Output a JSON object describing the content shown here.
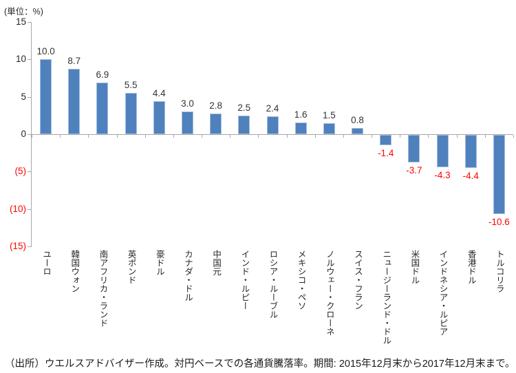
{
  "chart_data": {
    "type": "bar",
    "unit_label": "(単位：%)",
    "categories": [
      "ユーロ",
      "韓国ウォン",
      "南アフリカ・ランド",
      "英ポンド",
      "豪ドル",
      "カナダ・ドル",
      "中国元",
      "インド・ルピー",
      "ロシア・ルーブル",
      "メキシコ・ペソ",
      "ノルウェー・クローネ",
      "スイス・フラン",
      "ニュージーランド・ドル",
      "米国ドル",
      "インドネシア・ルピア",
      "香港ドル",
      "トルコリラ"
    ],
    "values": [
      10.0,
      8.7,
      6.9,
      5.5,
      4.4,
      3.0,
      2.8,
      2.5,
      2.4,
      1.6,
      1.5,
      0.8,
      -1.4,
      -3.7,
      -4.3,
      -4.4,
      -10.6
    ],
    "value_labels": [
      "10.0",
      "8.7",
      "6.9",
      "5.5",
      "4.4",
      "3.0",
      "2.8",
      "2.5",
      "2.4",
      "1.6",
      "1.5",
      "0.8",
      "-1.4",
      "-3.7",
      "-4.3",
      "-4.4",
      "-10.6"
    ],
    "ylim": [
      -15,
      15
    ],
    "y_ticks": [
      {
        "label": "15",
        "value": 15,
        "color": "#262626"
      },
      {
        "label": "10",
        "value": 10,
        "color": "#262626"
      },
      {
        "label": "5",
        "value": 5,
        "color": "#262626"
      },
      {
        "label": "0",
        "value": 0,
        "color": "#262626"
      },
      {
        "label": "(5)",
        "value": -5,
        "color": "#ff0000"
      },
      {
        "label": "(10)",
        "value": -10,
        "color": "#ff0000"
      },
      {
        "label": "(15)",
        "value": -15,
        "color": "#ff0000"
      }
    ],
    "grid": false,
    "legend": "none",
    "colors": {
      "bar_fill": "#4f81bd",
      "bar_border": "#a3bedd",
      "positive_label": "#333333",
      "negative_label": "#ff0000",
      "axis_line": "#a6a6a6"
    }
  },
  "footer": {
    "source_note": "（出所）ウエルスアドバイザー作成。対円ベースでの各通貨騰落率。期間: 2015年12月末から2017年12月末まで。"
  }
}
